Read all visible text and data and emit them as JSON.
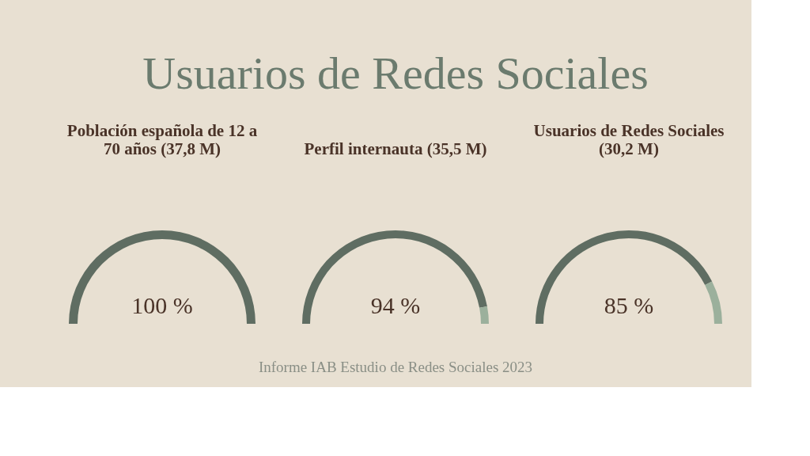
{
  "chart_data": [
    {
      "type": "other",
      "title": "Usuarios de Redes Sociales",
      "annotations": [
        "Informe IAB Estudio de Redes Sociales 2023"
      ]
    },
    {
      "type": "pie",
      "title": "Población española de 12 a 70 años (37,8 M)",
      "categories": [
        null,
        null
      ],
      "values": [
        100,
        0
      ],
      "colors": [
        "#5f6d62",
        "#9bb09c"
      ],
      "value_labels": [
        "100 %",
        null
      ]
    },
    {
      "type": "donut",
      "title": "Perfil internauta (35,5 M)",
      "categories": [
        null,
        null
      ],
      "values": [
        94,
        6
      ],
      "colors": [
        "#5f6d62",
        "#9bb09c"
      ],
      "value_labels": [
        "94 %",
        null
      ]
    },
    {
      "type": "donut",
      "title": "Usuarios de Redes Sociales (30,2 M)",
      "categories": [
        null,
        null
      ],
      "values": [
        85,
        15
      ],
      "colors": [
        "#5f6d62",
        "#9bb09c"
      ],
      "value_labels": [
        "85 %",
        null
      ]
    }
  ]
}
